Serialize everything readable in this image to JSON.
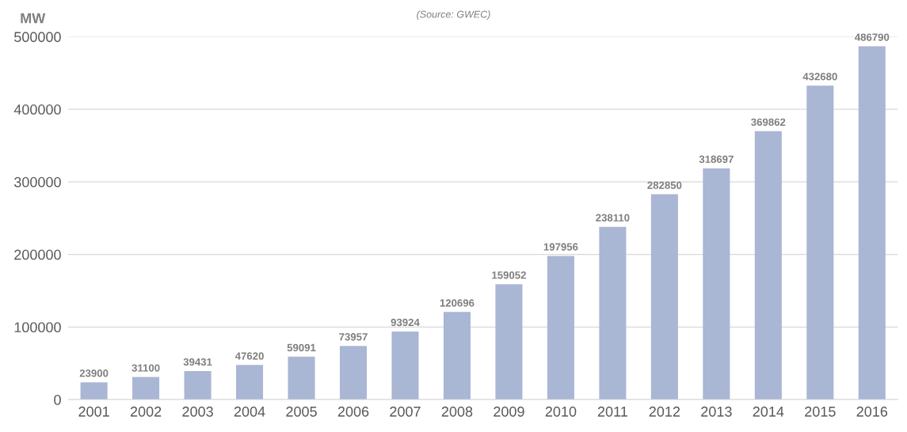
{
  "chart_data": {
    "type": "bar",
    "ylabel": "MW",
    "annotations": [
      "(Source: GWEC)"
    ],
    "categories": [
      "2001",
      "2002",
      "2003",
      "2004",
      "2005",
      "2006",
      "2007",
      "2008",
      "2009",
      "2010",
      "2011",
      "2012",
      "2013",
      "2014",
      "2015",
      "2016"
    ],
    "values": [
      23900,
      31100,
      39431,
      47620,
      59091,
      73957,
      93924,
      120696,
      159052,
      197956,
      238110,
      282850,
      318697,
      369862,
      432680,
      486790
    ],
    "color": "#a9b6d4",
    "ylim": [
      0,
      500000
    ],
    "yticks": [
      0,
      100000,
      200000,
      300000,
      400000,
      500000
    ],
    "grid": "y",
    "data_labels": true
  }
}
